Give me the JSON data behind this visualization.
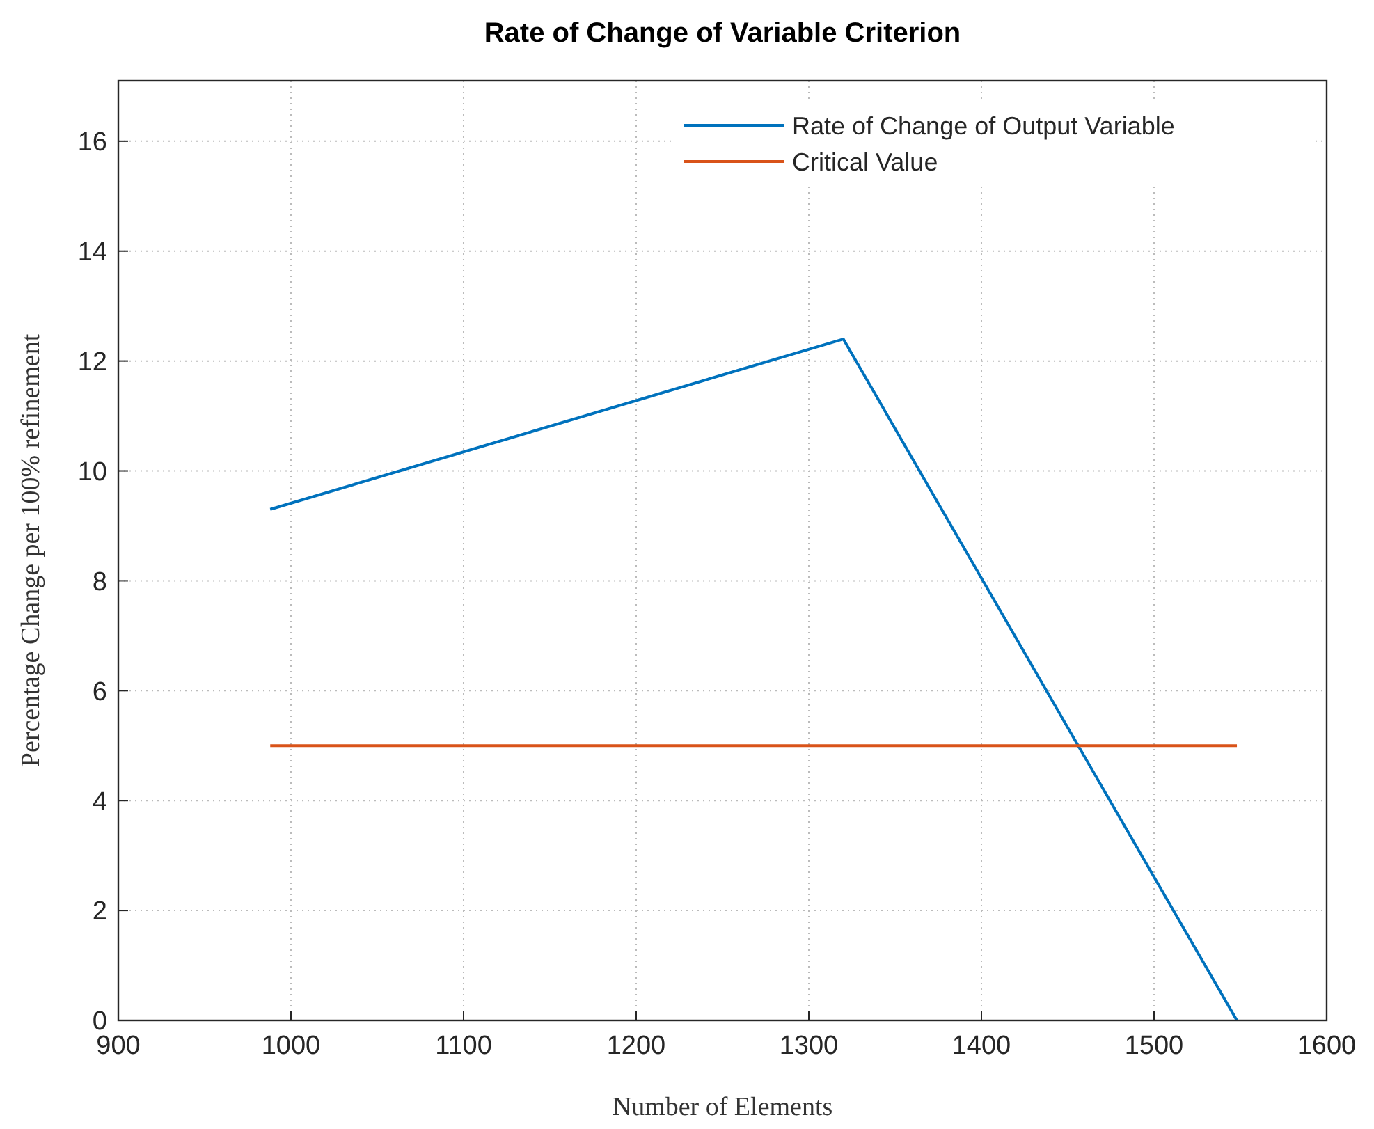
{
  "chart_data": {
    "type": "line",
    "title": "Rate of Change of Variable Criterion",
    "xlabel": "Number of Elements",
    "ylabel": "Percentage Change per 100% refinement",
    "series": [
      {
        "name": "Rate of Change of Output Variable",
        "color": "#0072bd",
        "x": [
          988,
          1320,
          1548
        ],
        "values": [
          9.3,
          12.4,
          0
        ]
      },
      {
        "name": "Critical Value",
        "color": "#d95319",
        "x": [
          988,
          1548
        ],
        "values": [
          5,
          5
        ]
      }
    ],
    "xlim": [
      900,
      1600
    ],
    "xticks": [
      900,
      1000,
      1100,
      1200,
      1300,
      1400,
      1500,
      1600
    ],
    "ylim": [
      0,
      17.1
    ],
    "yticks": [
      0,
      2,
      4,
      6,
      8,
      10,
      12,
      14,
      16
    ],
    "grid": true,
    "legend": "top right",
    "marker": "none",
    "line_style": "solid"
  }
}
